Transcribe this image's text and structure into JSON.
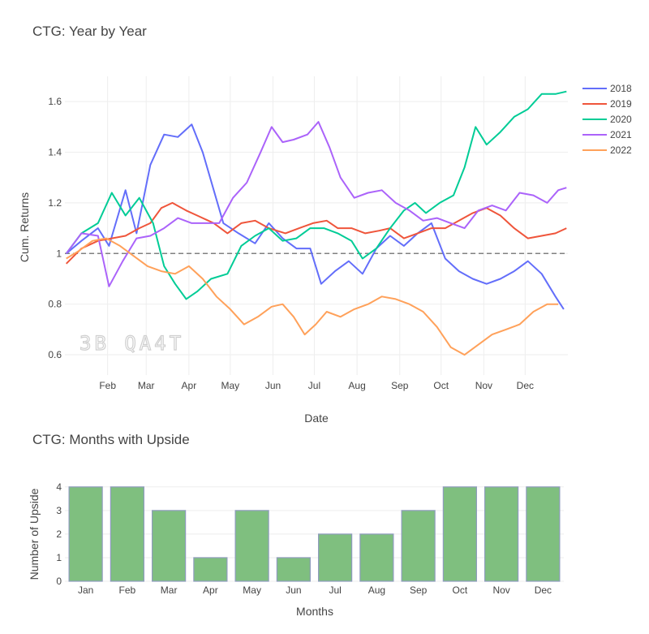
{
  "line_chart": {
    "title": "CTG: Year by Year",
    "xlabel": "Date",
    "ylabel": "Cum. Returns",
    "watermark": "3B QA4T"
  },
  "bar_chart": {
    "title": "CTG: Months with Upside",
    "xlabel": "Months",
    "ylabel": "Number of Upside",
    "bar_color": "#7fbf7f"
  },
  "chart_data": [
    {
      "type": "line",
      "title": "CTG: Year by Year",
      "xlabel": "Date",
      "ylabel": "Cum. Returns",
      "x_ticks": [
        "Feb",
        "Mar",
        "Apr",
        "May",
        "Jun",
        "Jul",
        "Aug",
        "Sep",
        "Oct",
        "Nov",
        "Dec"
      ],
      "x_tick_days": [
        31,
        59,
        90,
        120,
        151,
        181,
        212,
        243,
        273,
        304,
        334
      ],
      "y_ticks": [
        0.6,
        0.8,
        1,
        1.2,
        1.4,
        1.6
      ],
      "ylim": [
        0.52,
        1.7
      ],
      "xlim": [
        0,
        365
      ],
      "reference_line": 1,
      "grid": true,
      "legend_position": "top-right",
      "series": [
        {
          "name": "2018",
          "color": "#636efa",
          "points": [
            [
              1,
              1.0
            ],
            [
              12,
              1.05
            ],
            [
              24,
              1.1
            ],
            [
              32,
              1.03
            ],
            [
              44,
              1.25
            ],
            [
              52,
              1.08
            ],
            [
              62,
              1.35
            ],
            [
              72,
              1.47
            ],
            [
              82,
              1.46
            ],
            [
              92,
              1.51
            ],
            [
              100,
              1.4
            ],
            [
              108,
              1.25
            ],
            [
              115,
              1.12
            ],
            [
              126,
              1.08
            ],
            [
              138,
              1.04
            ],
            [
              148,
              1.12
            ],
            [
              158,
              1.06
            ],
            [
              168,
              1.02
            ],
            [
              178,
              1.02
            ],
            [
              186,
              0.88
            ],
            [
              196,
              0.93
            ],
            [
              206,
              0.97
            ],
            [
              216,
              0.92
            ],
            [
              226,
              1.02
            ],
            [
              236,
              1.07
            ],
            [
              246,
              1.03
            ],
            [
              256,
              1.08
            ],
            [
              266,
              1.12
            ],
            [
              276,
              0.98
            ],
            [
              286,
              0.93
            ],
            [
              296,
              0.9
            ],
            [
              306,
              0.88
            ],
            [
              316,
              0.9
            ],
            [
              326,
              0.93
            ],
            [
              336,
              0.97
            ],
            [
              346,
              0.92
            ],
            [
              356,
              0.83
            ],
            [
              362,
              0.78
            ]
          ]
        },
        {
          "name": "2019",
          "color": "#ef553b",
          "points": [
            [
              1,
              0.96
            ],
            [
              12,
              1.02
            ],
            [
              24,
              1.05
            ],
            [
              34,
              1.06
            ],
            [
              44,
              1.07
            ],
            [
              54,
              1.1
            ],
            [
              62,
              1.12
            ],
            [
              70,
              1.18
            ],
            [
              78,
              1.2
            ],
            [
              88,
              1.17
            ],
            [
              96,
              1.15
            ],
            [
              108,
              1.12
            ],
            [
              118,
              1.08
            ],
            [
              128,
              1.12
            ],
            [
              138,
              1.13
            ],
            [
              148,
              1.1
            ],
            [
              160,
              1.08
            ],
            [
              170,
              1.1
            ],
            [
              180,
              1.12
            ],
            [
              190,
              1.13
            ],
            [
              198,
              1.1
            ],
            [
              208,
              1.1
            ],
            [
              218,
              1.08
            ],
            [
              228,
              1.09
            ],
            [
              236,
              1.1
            ],
            [
              246,
              1.06
            ],
            [
              256,
              1.08
            ],
            [
              266,
              1.1
            ],
            [
              276,
              1.1
            ],
            [
              286,
              1.13
            ],
            [
              296,
              1.16
            ],
            [
              306,
              1.18
            ],
            [
              316,
              1.15
            ],
            [
              326,
              1.1
            ],
            [
              336,
              1.06
            ],
            [
              346,
              1.07
            ],
            [
              356,
              1.08
            ],
            [
              364,
              1.1
            ]
          ]
        },
        {
          "name": "2020",
          "color": "#00cc96",
          "points": [
            [
              1,
              1.0
            ],
            [
              12,
              1.08
            ],
            [
              24,
              1.12
            ],
            [
              34,
              1.24
            ],
            [
              44,
              1.15
            ],
            [
              54,
              1.22
            ],
            [
              64,
              1.12
            ],
            [
              72,
              0.95
            ],
            [
              80,
              0.88
            ],
            [
              88,
              0.82
            ],
            [
              96,
              0.85
            ],
            [
              106,
              0.9
            ],
            [
              118,
              0.92
            ],
            [
              128,
              1.03
            ],
            [
              138,
              1.07
            ],
            [
              148,
              1.1
            ],
            [
              158,
              1.05
            ],
            [
              168,
              1.06
            ],
            [
              178,
              1.1
            ],
            [
              188,
              1.1
            ],
            [
              198,
              1.08
            ],
            [
              208,
              1.05
            ],
            [
              216,
              0.98
            ],
            [
              226,
              1.02
            ],
            [
              236,
              1.1
            ],
            [
              246,
              1.17
            ],
            [
              254,
              1.2
            ],
            [
              262,
              1.16
            ],
            [
              272,
              1.2
            ],
            [
              282,
              1.23
            ],
            [
              290,
              1.34
            ],
            [
              298,
              1.5
            ],
            [
              306,
              1.43
            ],
            [
              316,
              1.48
            ],
            [
              326,
              1.54
            ],
            [
              336,
              1.57
            ],
            [
              346,
              1.63
            ],
            [
              356,
              1.63
            ],
            [
              364,
              1.64
            ]
          ]
        },
        {
          "name": "2021",
          "color": "#ab63fa",
          "points": [
            [
              1,
              1.0
            ],
            [
              12,
              1.08
            ],
            [
              24,
              1.07
            ],
            [
              32,
              0.87
            ],
            [
              42,
              0.97
            ],
            [
              52,
              1.06
            ],
            [
              62,
              1.07
            ],
            [
              72,
              1.1
            ],
            [
              82,
              1.14
            ],
            [
              92,
              1.12
            ],
            [
              100,
              1.12
            ],
            [
              112,
              1.12
            ],
            [
              122,
              1.22
            ],
            [
              132,
              1.28
            ],
            [
              142,
              1.4
            ],
            [
              150,
              1.5
            ],
            [
              158,
              1.44
            ],
            [
              166,
              1.45
            ],
            [
              176,
              1.47
            ],
            [
              184,
              1.52
            ],
            [
              192,
              1.42
            ],
            [
              200,
              1.3
            ],
            [
              210,
              1.22
            ],
            [
              220,
              1.24
            ],
            [
              230,
              1.25
            ],
            [
              240,
              1.2
            ],
            [
              250,
              1.17
            ],
            [
              260,
              1.13
            ],
            [
              270,
              1.14
            ],
            [
              280,
              1.12
            ],
            [
              290,
              1.1
            ],
            [
              300,
              1.17
            ],
            [
              310,
              1.19
            ],
            [
              320,
              1.17
            ],
            [
              330,
              1.24
            ],
            [
              340,
              1.23
            ],
            [
              350,
              1.2
            ],
            [
              358,
              1.25
            ],
            [
              364,
              1.26
            ]
          ]
        },
        {
          "name": "2022",
          "color": "#ffa15a",
          "points": [
            [
              1,
              0.98
            ],
            [
              10,
              1.01
            ],
            [
              20,
              1.05
            ],
            [
              30,
              1.06
            ],
            [
              40,
              1.03
            ],
            [
              50,
              0.99
            ],
            [
              60,
              0.95
            ],
            [
              70,
              0.93
            ],
            [
              80,
              0.92
            ],
            [
              90,
              0.95
            ],
            [
              100,
              0.9
            ],
            [
              110,
              0.83
            ],
            [
              120,
              0.78
            ],
            [
              130,
              0.72
            ],
            [
              140,
              0.75
            ],
            [
              150,
              0.79
            ],
            [
              158,
              0.8
            ],
            [
              166,
              0.75
            ],
            [
              174,
              0.68
            ],
            [
              182,
              0.72
            ],
            [
              190,
              0.77
            ],
            [
              200,
              0.75
            ],
            [
              210,
              0.78
            ],
            [
              220,
              0.8
            ],
            [
              230,
              0.83
            ],
            [
              240,
              0.82
            ],
            [
              250,
              0.8
            ],
            [
              260,
              0.77
            ],
            [
              270,
              0.71
            ],
            [
              280,
              0.63
            ],
            [
              290,
              0.6
            ],
            [
              300,
              0.64
            ],
            [
              310,
              0.68
            ],
            [
              320,
              0.7
            ],
            [
              330,
              0.72
            ],
            [
              340,
              0.77
            ],
            [
              350,
              0.8
            ],
            [
              358,
              0.8
            ]
          ]
        }
      ]
    },
    {
      "type": "bar",
      "title": "CTG: Months with Upside",
      "xlabel": "Months",
      "ylabel": "Number of Upside",
      "categories": [
        "Jan",
        "Feb",
        "Mar",
        "Apr",
        "May",
        "Jun",
        "Jul",
        "Aug",
        "Sep",
        "Oct",
        "Nov",
        "Dec"
      ],
      "values": [
        4,
        4,
        3,
        1,
        3,
        1,
        2,
        2,
        3,
        4,
        4,
        4
      ],
      "y_ticks": [
        0,
        1,
        2,
        3,
        4
      ],
      "ylim": [
        0,
        4.2
      ],
      "grid": true
    }
  ]
}
